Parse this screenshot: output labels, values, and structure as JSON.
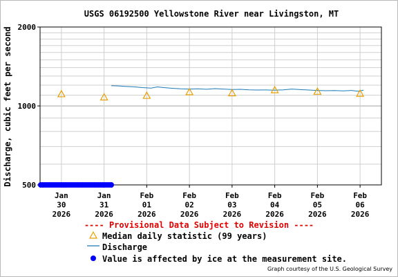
{
  "chart_data": {
    "type": "line",
    "title": "USGS 06192500 Yellowstone River near Livingston, MT",
    "ylabel": "Discharge, cubic feet per second",
    "y_scale": "log",
    "ylim": [
      500,
      2000
    ],
    "y_ticks": [
      500,
      1000,
      2000
    ],
    "grid": true,
    "x_ticks": [
      {
        "day": 0,
        "label": [
          "Jan",
          "30",
          "2026"
        ]
      },
      {
        "day": 1,
        "label": [
          "Jan",
          "31",
          "2026"
        ]
      },
      {
        "day": 2,
        "label": [
          "Feb",
          "01",
          "2026"
        ]
      },
      {
        "day": 3,
        "label": [
          "Feb",
          "02",
          "2026"
        ]
      },
      {
        "day": 4,
        "label": [
          "Feb",
          "03",
          "2026"
        ]
      },
      {
        "day": 5,
        "label": [
          "Feb",
          "04",
          "2026"
        ]
      },
      {
        "day": 6,
        "label": [
          "Feb",
          "05",
          "2026"
        ]
      },
      {
        "day": 7,
        "label": [
          "Feb",
          "06",
          "2026"
        ]
      }
    ],
    "xlim": [
      -0.5,
      7.5
    ],
    "series": [
      {
        "name": "Median daily statistic (99 years)",
        "marker": "triangle",
        "color": "#e8a000",
        "x": [
          0,
          1,
          2,
          3,
          4,
          5,
          6,
          7
        ],
        "values": [
          1110,
          1080,
          1095,
          1130,
          1120,
          1150,
          1135,
          1115
        ]
      },
      {
        "name": "Discharge",
        "style": "line",
        "color": "#1a7ab5",
        "x": [
          1.17,
          1.35,
          1.5,
          1.7,
          1.9,
          2.1,
          2.25,
          2.4,
          2.6,
          2.8,
          3.0,
          3.2,
          3.4,
          3.6,
          3.8,
          4.0,
          4.2,
          4.4,
          4.6,
          4.8,
          5.0,
          5.2,
          5.4,
          5.6,
          5.8,
          6.0,
          6.2,
          6.4,
          6.6,
          6.8,
          6.95,
          7.08
        ],
        "values": [
          1195,
          1192,
          1188,
          1183,
          1175,
          1170,
          1182,
          1175,
          1168,
          1162,
          1160,
          1162,
          1158,
          1164,
          1160,
          1155,
          1157,
          1152,
          1150,
          1151,
          1149,
          1152,
          1160,
          1154,
          1150,
          1146,
          1143,
          1145,
          1141,
          1146,
          1138,
          1149
        ]
      },
      {
        "name": "Value is affected by ice at the measurement site.",
        "marker": "dot",
        "color": "#0000ff",
        "x_range": [
          -0.5,
          1.2
        ],
        "values": [
          500
        ]
      }
    ]
  },
  "legend": {
    "provisional": "---- Provisional Data Subject to Revision ----",
    "median_label": "Median daily statistic (99 years)",
    "discharge_label": "Discharge",
    "ice_label": "Value is affected by ice at the measurement site."
  },
  "courtesy": "Graph courtesy of the U.S. Geological Survey",
  "colors": {
    "provisional": "#e00000",
    "median": "#e8a000",
    "discharge": "#1a7ab5",
    "ice": "#0000ff"
  }
}
